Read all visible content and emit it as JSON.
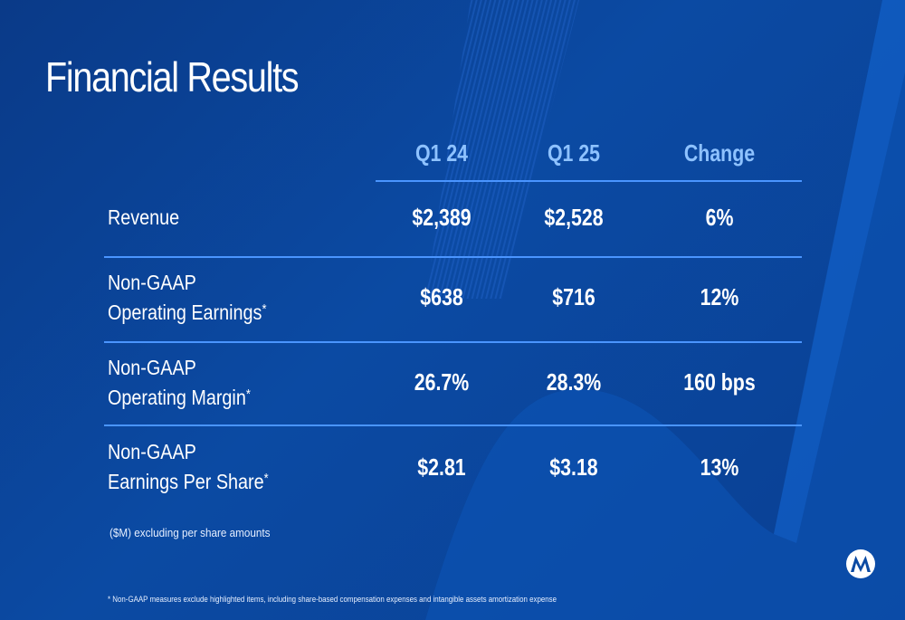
{
  "title": "Financial Results",
  "columns": [
    "Q1 24",
    "Q1 25",
    "Change"
  ],
  "rows": [
    {
      "label_line1": "Revenue",
      "label_line2": "",
      "footnote_mark": "",
      "values": [
        "$2,389",
        "$2,528",
        "6%"
      ]
    },
    {
      "label_line1": "Non-GAAP",
      "label_line2": "Operating Earnings",
      "footnote_mark": "*",
      "values": [
        "$638",
        "$716",
        "12%"
      ]
    },
    {
      "label_line1": "Non-GAAP",
      "label_line2": "Operating Margin",
      "footnote_mark": "*",
      "values": [
        "26.7%",
        "28.3%",
        "160 bps"
      ]
    },
    {
      "label_line1": "Non-GAAP",
      "label_line2": "Earnings Per Share",
      "footnote_mark": "*",
      "values": [
        "$2.81",
        "$3.18",
        "13%"
      ]
    }
  ],
  "units_note": "($M) excluding per share amounts",
  "footnote": "* Non-GAAP measures exclude highlighted items, including share-based compensation expenses and intangible assets amortization expense",
  "colors": {
    "background": "#0b4aa3",
    "header_text": "#8ec2ff",
    "rule": "#4a95ff",
    "text": "#ffffff"
  },
  "icons": {
    "logo": "motorola-logo-icon"
  }
}
